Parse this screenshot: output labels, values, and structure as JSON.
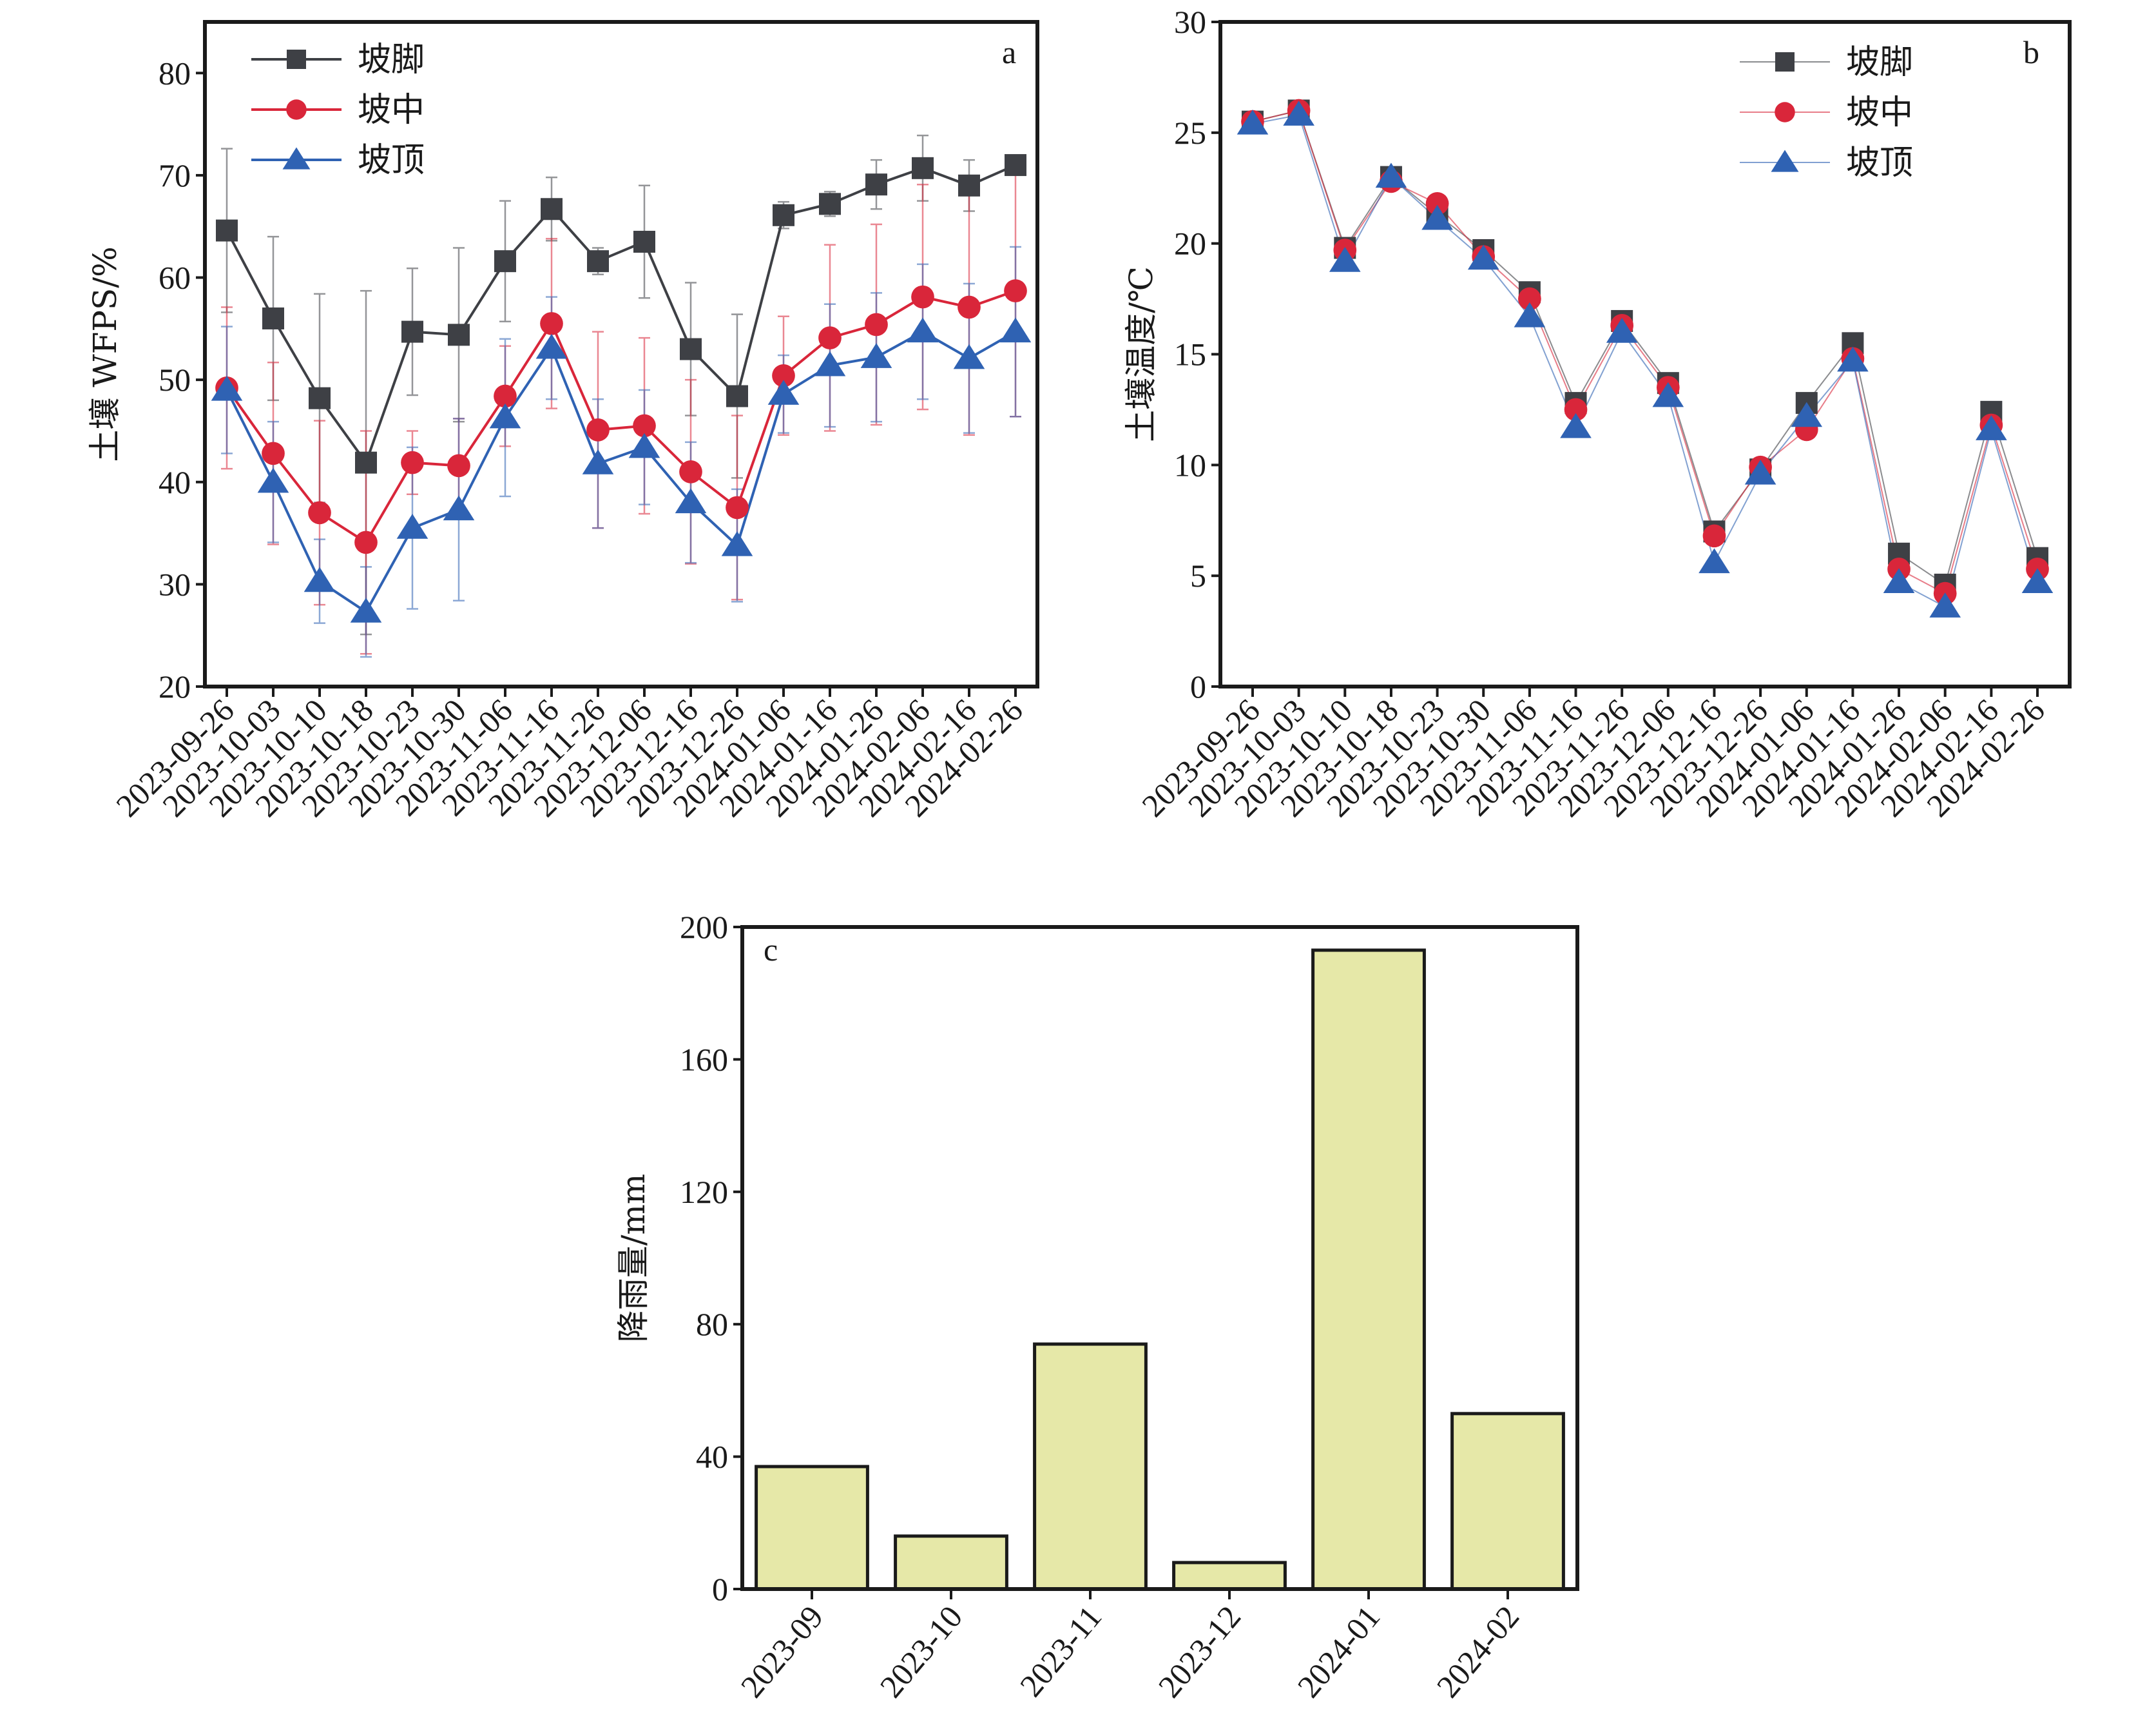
{
  "chart_data": [
    {
      "id": "a",
      "type": "line",
      "panel_label": "a",
      "title": "",
      "xlabel": "",
      "ylabel": "土壤 WFPS/%",
      "ylim": [
        20,
        85
      ],
      "yticks": [
        20,
        30,
        40,
        50,
        60,
        70,
        80
      ],
      "grid": false,
      "legend_position": "top-left",
      "x": [
        "2023-09-26",
        "2023-10-03",
        "2023-10-10",
        "2023-10-18",
        "2023-10-23",
        "2023-10-30",
        "2023-11-06",
        "2023-11-16",
        "2023-11-26",
        "2023-12-06",
        "2023-12-16",
        "2023-12-26",
        "2024-01-06",
        "2024-01-16",
        "2024-01-26",
        "2024-02-06",
        "2024-02-16",
        "2024-02-26"
      ],
      "series": [
        {
          "name": "坡脚",
          "marker": "square",
          "color": "#3e4045",
          "values": [
            64.6,
            56.0,
            48.2,
            41.9,
            54.7,
            54.4,
            61.6,
            66.7,
            61.6,
            63.5,
            53.0,
            48.4,
            66.1,
            67.2,
            69.1,
            70.7,
            69.0,
            71.0
          ],
          "errors": [
            8.0,
            8.0,
            10.2,
            16.8,
            6.2,
            8.5,
            5.9,
            3.1,
            1.3,
            5.5,
            6.5,
            8.0,
            1.3,
            1.2,
            2.4,
            3.2,
            2.5,
            0.5
          ]
        },
        {
          "name": "坡中",
          "marker": "circle",
          "color": "#d9263a",
          "values": [
            49.2,
            42.8,
            37.0,
            34.1,
            41.9,
            41.6,
            48.4,
            55.5,
            45.1,
            45.5,
            41.0,
            37.5,
            50.4,
            54.1,
            55.4,
            58.1,
            57.1,
            58.7
          ],
          "errors": [
            7.9,
            8.9,
            9.0,
            10.9,
            3.1,
            4.6,
            4.9,
            8.3,
            9.6,
            8.6,
            9.0,
            9.0,
            5.8,
            9.1,
            9.8,
            11.0,
            12.5,
            12.3
          ]
        },
        {
          "name": "坡顶",
          "marker": "triangle",
          "color": "#2f62b3",
          "values": [
            49.0,
            40.0,
            30.3,
            27.3,
            35.5,
            37.3,
            46.3,
            53.1,
            41.8,
            43.4,
            38.0,
            33.8,
            48.6,
            51.4,
            52.2,
            54.7,
            52.1,
            54.7
          ],
          "errors": [
            6.2,
            5.9,
            4.1,
            4.4,
            7.9,
            8.9,
            7.7,
            5.0,
            6.3,
            5.6,
            5.9,
            5.5,
            3.8,
            6.0,
            6.3,
            6.6,
            7.3,
            8.3
          ]
        }
      ]
    },
    {
      "id": "b",
      "type": "line",
      "panel_label": "b",
      "title": "",
      "xlabel": "",
      "ylabel": "土壤温度/℃",
      "ylim": [
        0,
        30
      ],
      "yticks": [
        0,
        5,
        10,
        15,
        20,
        25,
        30
      ],
      "grid": false,
      "legend_position": "top-right",
      "x": [
        "2023-09-26",
        "2023-10-03",
        "2023-10-10",
        "2023-10-18",
        "2023-10-23",
        "2023-10-30",
        "2023-11-06",
        "2023-11-16",
        "2023-11-26",
        "2023-12-06",
        "2023-12-16",
        "2023-12-26",
        "2024-01-06",
        "2024-01-16",
        "2024-01-26",
        "2024-02-06",
        "2024-02-16",
        "2024-02-26"
      ],
      "series": [
        {
          "name": "坡脚",
          "marker": "square",
          "color": "#3e4045",
          "values": [
            25.5,
            26.0,
            19.8,
            23.0,
            21.3,
            19.7,
            17.8,
            12.8,
            16.5,
            13.7,
            7.0,
            9.8,
            12.8,
            15.5,
            6.0,
            4.6,
            12.4,
            5.8
          ]
        },
        {
          "name": "坡中",
          "marker": "circle",
          "color": "#d9263a",
          "values": [
            25.5,
            26.0,
            19.7,
            22.8,
            21.8,
            19.4,
            17.5,
            12.5,
            16.3,
            13.5,
            6.8,
            9.9,
            11.6,
            14.8,
            5.3,
            4.2,
            11.8,
            5.3
          ]
        },
        {
          "name": "坡顶",
          "marker": "triangle",
          "color": "#2f62b3",
          "values": [
            25.4,
            25.8,
            19.2,
            23.0,
            21.1,
            19.3,
            16.7,
            11.7,
            16.0,
            13.1,
            5.6,
            9.6,
            12.2,
            14.7,
            4.7,
            3.6,
            11.6,
            4.7
          ]
        }
      ]
    },
    {
      "id": "c",
      "type": "bar",
      "panel_label": "c",
      "title": "",
      "xlabel": "",
      "ylabel": "降雨量/mm",
      "ylim": [
        0,
        200
      ],
      "yticks": [
        0,
        40,
        80,
        120,
        160,
        200
      ],
      "grid": false,
      "bar_color": "#e6e8a8",
      "categories": [
        "2023-09",
        "2023-10",
        "2023-11",
        "2023-12",
        "2024-01",
        "2024-02"
      ],
      "values": [
        37,
        16,
        74,
        8,
        193,
        53
      ]
    }
  ]
}
